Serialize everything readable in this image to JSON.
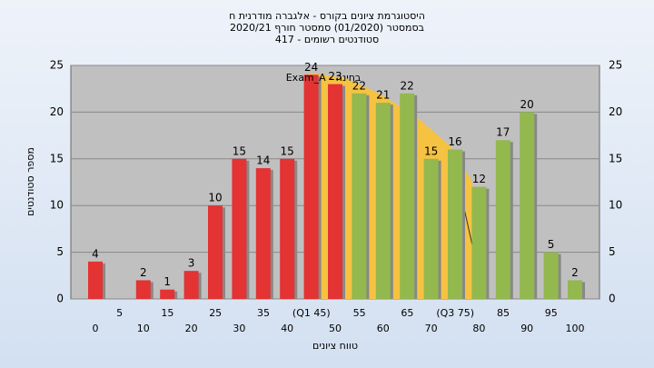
{
  "chart_data": {
    "type": "bar",
    "title": "היסטוגרמת ציונים בקורס - אלגברה מודרנית ח",
    "subtitle": "בסמסטר (01/2020) סמסטר חורף 2020/21",
    "subtitle2": "סטודנטים רשומים - 417",
    "y_label": "מספר סטודנטים",
    "x_label": "טווח ציונים",
    "annotation": "בחינה - Exam_A",
    "categories": [
      "0",
      "5",
      "10",
      "15",
      "20",
      "25",
      "30",
      "35",
      "40",
      "(Q1 45)",
      "50",
      "55",
      "60",
      "65",
      "70",
      "(Q3 75)",
      "80",
      "85",
      "90",
      "95",
      "100"
    ],
    "values": [
      4,
      null,
      2,
      1,
      3,
      10,
      15,
      14,
      15,
      24,
      23,
      22,
      21,
      22,
      15,
      16,
      12,
      17,
      20,
      5,
      2
    ],
    "colors": [
      "#e33333",
      "#e33333",
      "#e33333",
      "#e33333",
      "#e33333",
      "#e33333",
      "#e33333",
      "#e33333",
      "#e33333",
      "#e33333",
      "#e33333",
      "#93b84e",
      "#93b84e",
      "#93b84e",
      "#93b84e",
      "#93b84e",
      "#93b84e",
      "#93b84e",
      "#93b84e",
      "#93b84e",
      "#93b84e"
    ],
    "ylim": [
      0,
      25
    ],
    "yticks": [
      0,
      5,
      10,
      15,
      20,
      25
    ],
    "grid": true
  }
}
